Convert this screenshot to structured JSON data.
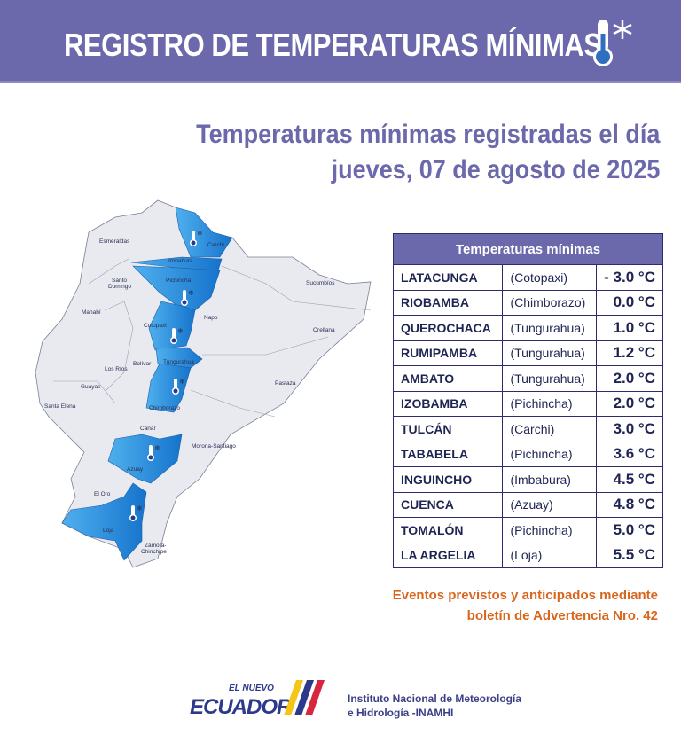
{
  "header": {
    "title": "REGISTRO DE TEMPERATURAS MÍNIMAS",
    "icon": "thermometer-snowflake-icon"
  },
  "subtitle": {
    "line1": "Temperaturas mínimas registradas el día",
    "line2": "jueves, 07 de agosto de 2025"
  },
  "map": {
    "highlight_color": "#1f8fe0",
    "base_color": "#e9eaf0",
    "provinces": [
      "Esmeraldas",
      "Carchi",
      "Imbabura",
      "Sucumbíos",
      "Santo Domingo",
      "Pichincha",
      "Manabí",
      "Napo",
      "Orellana",
      "Cotopaxi",
      "Los Ríos",
      "Bolívar",
      "Tungurahua",
      "Pastaza",
      "Guayas",
      "Santa Elena",
      "Chimborazo",
      "Cañar",
      "Morona-Santiago",
      "Azuay",
      "El Oro",
      "Loja",
      "Zamora-Chinchipe"
    ]
  },
  "table": {
    "header": "Temperaturas mínimas",
    "rows": [
      {
        "city": "LATACUNGA",
        "province": "(Cotopaxi)",
        "value": "- 3.0 °C"
      },
      {
        "city": "RIOBAMBA",
        "province": "(Chimborazo)",
        "value": "0.0 °C"
      },
      {
        "city": "QUEROCHACA",
        "province": "(Tungurahua)",
        "value": "1.0 °C"
      },
      {
        "city": "RUMIPAMBA",
        "province": "(Tungurahua)",
        "value": "1.2 °C"
      },
      {
        "city": "AMBATO",
        "province": "(Tungurahua)",
        "value": "2.0 °C"
      },
      {
        "city": "IZOBAMBA",
        "province": "(Pichincha)",
        "value": "2.0 °C"
      },
      {
        "city": "TULCÁN",
        "province": "(Carchi)",
        "value": "3.0 °C"
      },
      {
        "city": "TABABELA",
        "province": "(Pichincha)",
        "value": "3.6 °C"
      },
      {
        "city": "INGUINCHO",
        "province": "(Imbabura)",
        "value": "4.5 °C"
      },
      {
        "city": "CUENCA",
        "province": "(Azuay)",
        "value": "4.8 °C"
      },
      {
        "city": "TOMALÓN",
        "province": "(Pichincha)",
        "value": "5.0 °C"
      },
      {
        "city": "LA ARGELIA",
        "province": "(Loja)",
        "value": "5.5 °C"
      }
    ]
  },
  "note": {
    "line1": "Eventos previstos y anticipados mediante",
    "line2": "boletín de Advertencia Nro. 42"
  },
  "footer": {
    "logo_small": "EL NUEVO",
    "logo_big": "ECUADOR",
    "institute_line1": "Instituto Nacional de Meteorología",
    "institute_line2": "e Hidrología -INAMHI"
  },
  "colors": {
    "banner": "#6b68ac",
    "accent_orange": "#d9661d",
    "table_border": "#2e2a6e"
  }
}
